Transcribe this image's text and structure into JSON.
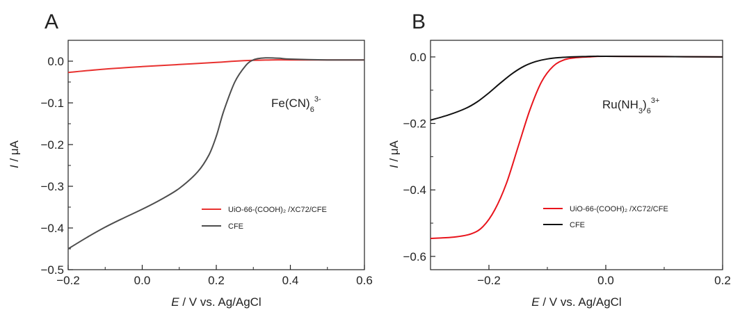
{
  "panels": [
    {
      "letter": "A",
      "annotation": {
        "main": "Fe(CN)",
        "sub": "6",
        "sup": "3-"
      },
      "chart_data": {
        "type": "line",
        "xlabel": {
          "var": "E",
          "rest": " / V vs. Ag/AgCl"
        },
        "ylabel": {
          "var": "I",
          "rest": " / μA"
        },
        "xlim": [
          -0.2,
          0.6
        ],
        "ylim": [
          -0.5,
          0.05
        ],
        "xticks": [
          -0.2,
          0.0,
          0.2,
          0.4,
          0.6
        ],
        "xtick_labels": [
          "−0.2",
          "0.0",
          "0.2",
          "0.4",
          "0.6"
        ],
        "yticks": [
          0.0,
          -0.1,
          -0.2,
          -0.3,
          -0.4,
          -0.5
        ],
        "ytick_labels": [
          "0.0",
          "−0.1",
          "−0.2",
          "−0.3",
          "−0.4",
          "−0.5"
        ],
        "grid": false,
        "legend_position": "lower-right",
        "series": [
          {
            "name": "UiO-66-(COOH)₂ /XC72/CFE",
            "color": "#e8312f",
            "x": [
              -0.2,
              -0.1,
              0.0,
              0.1,
              0.2,
              0.25,
              0.3,
              0.35,
              0.4,
              0.5,
              0.6
            ],
            "y": [
              -0.027,
              -0.019,
              -0.013,
              -0.008,
              -0.003,
              0.0,
              0.002,
              0.003,
              0.003,
              0.003,
              0.003
            ]
          },
          {
            "name": "CFE",
            "color": "#4d4d4d",
            "x": [
              -0.2,
              -0.15,
              -0.1,
              -0.05,
              0.0,
              0.05,
              0.1,
              0.15,
              0.18,
              0.2,
              0.22,
              0.25,
              0.28,
              0.3,
              0.32,
              0.34,
              0.37,
              0.4,
              0.5,
              0.6
            ],
            "y": [
              -0.45,
              -0.423,
              -0.398,
              -0.376,
              -0.355,
              -0.332,
              -0.305,
              -0.265,
              -0.225,
              -0.18,
              -0.12,
              -0.05,
              -0.01,
              0.003,
              0.007,
              0.008,
              0.007,
              0.005,
              0.003,
              0.003
            ]
          }
        ]
      }
    },
    {
      "letter": "B",
      "annotation": {
        "main": "Ru(NH",
        "sub": "3",
        "mid": ")",
        "sub2": "6",
        "sup": "3+"
      },
      "chart_data": {
        "type": "line",
        "xlabel": {
          "var": "E",
          "rest": " / V vs. Ag/AgCl"
        },
        "ylabel": {
          "var": "I",
          "rest": " / μA"
        },
        "xlim": [
          -0.3,
          0.2
        ],
        "ylim": [
          -0.64,
          0.05
        ],
        "xticks": [
          -0.2,
          0.0,
          0.2
        ],
        "xtick_labels": [
          "−0.2",
          "0.0",
          "0.2"
        ],
        "yticks": [
          0.0,
          -0.2,
          -0.4,
          -0.6
        ],
        "ytick_labels": [
          "0.0",
          "−0.2",
          "−0.4",
          "−0.6"
        ],
        "grid": false,
        "legend_position": "lower-right",
        "series": [
          {
            "name": "UiO-66-(COOH)₂ /XC72/CFE",
            "color": "#e8141c",
            "x": [
              -0.3,
              -0.26,
              -0.23,
              -0.21,
              -0.19,
              -0.17,
              -0.15,
              -0.13,
              -0.11,
              -0.09,
              -0.07,
              -0.05,
              -0.03,
              0.0,
              0.1,
              0.2
            ],
            "y": [
              -0.546,
              -0.542,
              -0.532,
              -0.51,
              -0.46,
              -0.38,
              -0.27,
              -0.16,
              -0.075,
              -0.028,
              -0.008,
              -0.002,
              0.0,
              0.002,
              0.001,
              0.0
            ]
          },
          {
            "name": "CFE",
            "color": "#111111",
            "x": [
              -0.3,
              -0.27,
              -0.24,
              -0.22,
              -0.2,
              -0.18,
              -0.16,
              -0.14,
              -0.12,
              -0.1,
              -0.08,
              -0.06,
              -0.04,
              -0.02,
              0.0,
              0.1,
              0.2
            ],
            "y": [
              -0.19,
              -0.175,
              -0.155,
              -0.135,
              -0.108,
              -0.078,
              -0.05,
              -0.028,
              -0.014,
              -0.006,
              -0.002,
              0.0,
              0.001,
              0.002,
              0.002,
              0.001,
              0.0
            ]
          }
        ]
      }
    }
  ]
}
